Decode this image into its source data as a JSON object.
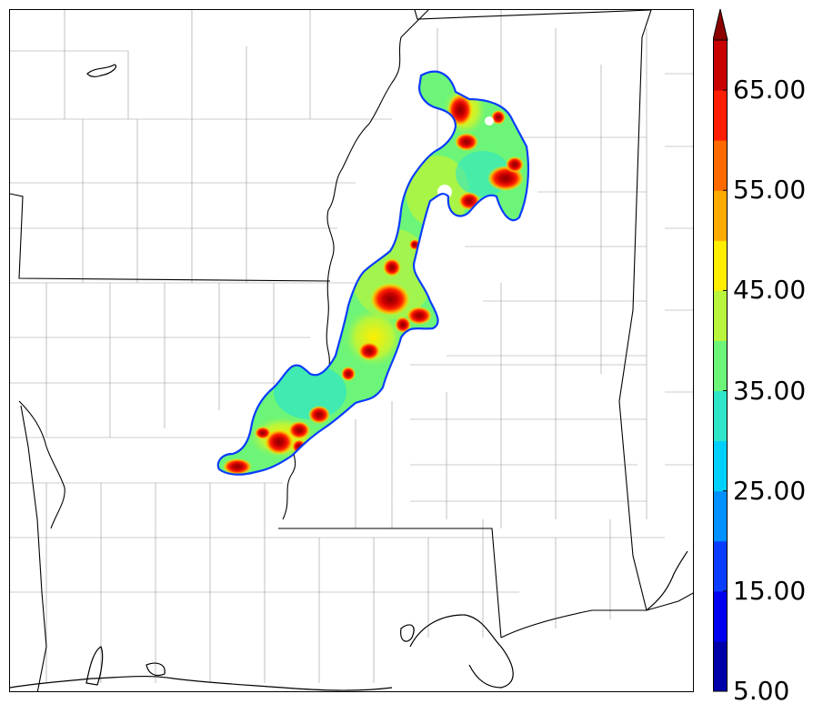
{
  "colorbar": {
    "levels": [
      5,
      10,
      15,
      20,
      25,
      30,
      35,
      40,
      45,
      50,
      55,
      60,
      65,
      70
    ],
    "colors": [
      "#0000aa",
      "#0000f0",
      "#0a3cff",
      "#0090ff",
      "#00d0ff",
      "#2ee6c8",
      "#6cf578",
      "#b8f53c",
      "#ffee00",
      "#ffaa00",
      "#ff6a00",
      "#ff1e00",
      "#c80000",
      "#8c0000"
    ],
    "extend": "max",
    "tick_labels": [
      "5.00",
      "15.00",
      "25.00",
      "35.00",
      "45.00",
      "55.00",
      "65.00"
    ]
  },
  "map": {
    "background": "#ffffff",
    "state_border_color": "#000000",
    "county_line_color": "#9a9a9a"
  }
}
